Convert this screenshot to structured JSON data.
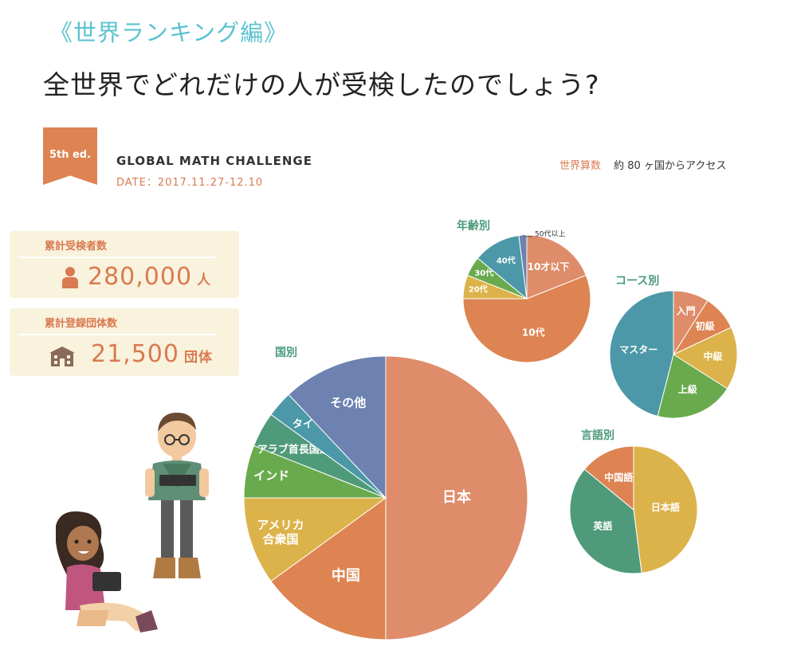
{
  "header": {
    "category": "《世界ランキング編》",
    "headline": "全世界でどれだけの人が受検したのでしょう?"
  },
  "event": {
    "edition": "5th ed.",
    "title": "GLOBAL MATH CHALLENGE",
    "date": "DATE：2017.11.27-12.10"
  },
  "access": {
    "label": "世界算数",
    "text": "約 80 ヶ国からアクセス"
  },
  "stats": {
    "participants": {
      "label": "累計受検者数",
      "value": "280,000",
      "unit": "人",
      "icon": "person-icon"
    },
    "groups": {
      "label": "累計登録団体数",
      "value": "21,500",
      "unit": "団体",
      "icon": "school-building-icon"
    }
  },
  "colors": {
    "orange": "#dd8452",
    "salmon": "#de8c6a",
    "yellow": "#dcb34a",
    "green": "#6aaa4e",
    "teal": "#4f9a7a",
    "blue": "#4c98a8",
    "purple": "#6d82b0"
  },
  "chart_data": [
    {
      "type": "pie",
      "title": "国別",
      "slices": [
        {
          "label": "日本",
          "value": 50,
          "color": "#de8c6a"
        },
        {
          "label": "中国",
          "value": 15,
          "color": "#dd8452"
        },
        {
          "label": "アメリカ合衆国",
          "value": 10,
          "color": "#dcb34a"
        },
        {
          "label": "インド",
          "value": 6,
          "color": "#6aaa4e"
        },
        {
          "label": "アラブ首長国連邦",
          "value": 4,
          "color": "#4f9a7a"
        },
        {
          "label": "タイ",
          "value": 3,
          "color": "#4c98a8"
        },
        {
          "label": "その他",
          "value": 12,
          "color": "#6d82b0"
        }
      ]
    },
    {
      "type": "pie",
      "title": "年齢別",
      "slices": [
        {
          "label": "10才以下",
          "value": 19,
          "color": "#de8c6a"
        },
        {
          "label": "10代",
          "value": 56,
          "color": "#dd8452"
        },
        {
          "label": "20代",
          "value": 6,
          "color": "#dcb34a"
        },
        {
          "label": "30代",
          "value": 5,
          "color": "#6aaa4e"
        },
        {
          "label": "40代",
          "value": 12,
          "color": "#4c98a8"
        },
        {
          "label": "50代以上",
          "value": 2,
          "color": "#6d82b0"
        }
      ]
    },
    {
      "type": "pie",
      "title": "コース別",
      "slices": [
        {
          "label": "入門",
          "value": 9,
          "color": "#de8c6a"
        },
        {
          "label": "初級",
          "value": 9,
          "color": "#dd8452"
        },
        {
          "label": "中級",
          "value": 16,
          "color": "#dcb34a"
        },
        {
          "label": "上級",
          "value": 20,
          "color": "#6aaa4e"
        },
        {
          "label": "マスター",
          "value": 46,
          "color": "#4c98a8"
        }
      ]
    },
    {
      "type": "pie",
      "title": "言語別",
      "slices": [
        {
          "label": "日本語",
          "value": 48,
          "color": "#dcb34a"
        },
        {
          "label": "英語",
          "value": 38,
          "color": "#4f9a7a"
        },
        {
          "label": "中国語",
          "value": 14,
          "color": "#dd8452"
        }
      ]
    }
  ]
}
